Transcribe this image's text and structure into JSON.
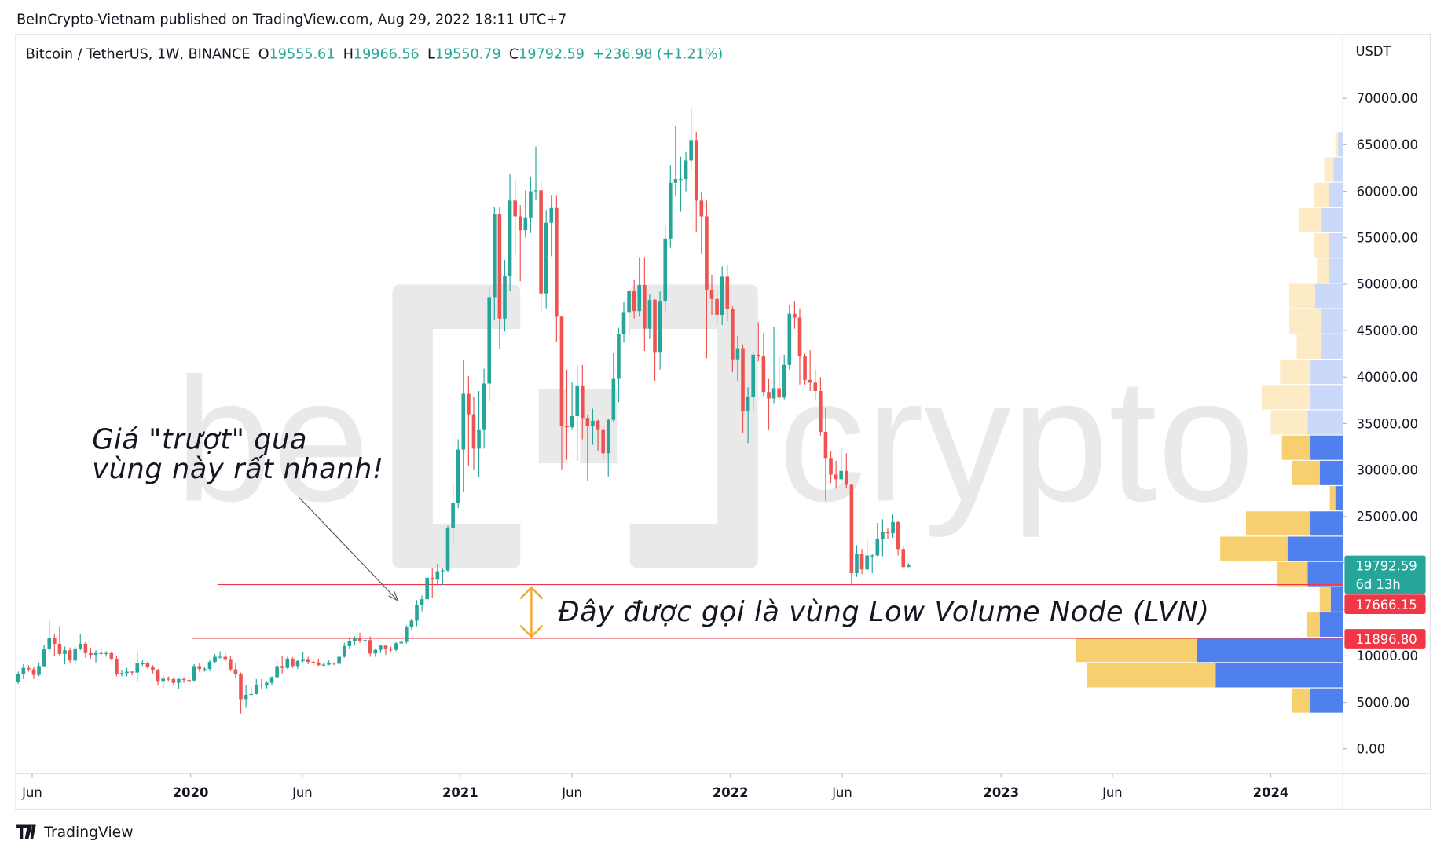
{
  "header": "BeInCrypto-Vietnam published on TradingView.com, Aug 29, 2022 18:11 UTC+7",
  "brand": "TradingView",
  "watermark": [
    "be",
    "crypto"
  ],
  "chart_data": {
    "type": "candlestick",
    "symbol": "Bitcoin / TetherUS, 1W, BINANCE",
    "ohlc_labels": [
      "O",
      "H",
      "L",
      "C"
    ],
    "change": "+236.98 (+1.21%)",
    "unit": "USDT",
    "countdown": "6d 13h",
    "up_color": "#26a69a",
    "down_color": "#ef5350",
    "open": [
      7200,
      8000,
      8700,
      8550,
      7950,
      8900,
      10700,
      11900,
      11300,
      10200,
      10600,
      9500,
      10800,
      11300,
      10300,
      10100,
      10300,
      10300,
      10300,
      9700,
      8000,
      8150,
      8300,
      8200,
      9200,
      9200,
      8800,
      8500,
      7300,
      7550,
      7500,
      7100,
      7500,
      7400,
      7350,
      8900,
      8600,
      8600,
      9350,
      9900,
      9900,
      9650,
      8550,
      8000,
      5350,
      5800,
      5900,
      6900,
      6800,
      7100,
      7700,
      8900,
      8700,
      9700,
      8900,
      9450,
      9650,
      9350,
      9300,
      9000,
      9050,
      9250,
      9150,
      9900,
      11050,
      11550,
      11900,
      11650,
      11700,
      10250,
      10650,
      11100,
      10750,
      10650,
      11350,
      11500,
      13100,
      13800,
      15500,
      16100,
      18400,
      18200,
      19100,
      19200,
      23800,
      26500,
      32200,
      38200,
      36000,
      32300,
      34300,
      39300,
      48600,
      57500,
      46300,
      50900,
      59000,
      57300,
      55800,
      57100,
      60000,
      60100,
      49000,
      56600,
      58200,
      46500,
      34700,
      34600,
      35800,
      39100,
      35600,
      34700,
      35300,
      34300,
      31800,
      35400,
      39800,
      44600,
      47000,
      49300,
      47100,
      49900,
      45200,
      48300,
      42700,
      48200,
      54900,
      60900,
      61300,
      61300,
      63300,
      65500,
      59000,
      57300,
      49400,
      48400,
      46700,
      50800,
      47300,
      41900,
      43100,
      36300,
      37900,
      42400,
      42200,
      38400,
      37700,
      38800,
      37800,
      41300,
      46800,
      46400,
      42200,
      39700,
      39400,
      38500,
      34100,
      31300,
      29500,
      29000,
      29900,
      28400,
      18900,
      21000,
      19300,
      20800,
      20800,
      22600,
      23300,
      23200,
      24400,
      21500,
      19555.61
    ],
    "high": [
      8300,
      9100,
      9000,
      8800,
      9300,
      11200,
      13800,
      12400,
      13200,
      11000,
      10900,
      11000,
      12300,
      11500,
      10900,
      10600,
      10900,
      10500,
      10400,
      10000,
      8500,
      8700,
      8400,
      10500,
      9600,
      9400,
      9000,
      8600,
      7900,
      7800,
      7700,
      7600,
      7700,
      7600,
      9100,
      9200,
      8800,
      9600,
      10200,
      10500,
      10300,
      9950,
      9200,
      8200,
      6900,
      6700,
      7500,
      7500,
      7300,
      7800,
      9500,
      10000,
      9900,
      9850,
      9600,
      10400,
      9900,
      9600,
      9700,
      9300,
      9500,
      9300,
      9950,
      11400,
      12000,
      12100,
      12500,
      11800,
      12100,
      10700,
      11200,
      11200,
      11000,
      11500,
      11700,
      13300,
      14000,
      16000,
      16500,
      18500,
      19400,
      19900,
      19400,
      24000,
      28400,
      33300,
      41900,
      40100,
      37900,
      38500,
      40900,
      49700,
      58300,
      58300,
      52600,
      61800,
      61200,
      58500,
      60100,
      61500,
      64800,
      61000,
      57900,
      59600,
      59600,
      46600,
      40800,
      39500,
      41300,
      41300,
      36000,
      36600,
      35400,
      34800,
      35500,
      42600,
      45300,
      48100,
      49400,
      50500,
      52900,
      52900,
      48900,
      48400,
      49200,
      56300,
      62800,
      67000,
      63700,
      64200,
      69000,
      66400,
      59900,
      59000,
      51000,
      49500,
      51900,
      52100,
      47600,
      44400,
      43500,
      38900,
      42700,
      45900,
      44700,
      39800,
      45400,
      42300,
      42400,
      47700,
      48200,
      47400,
      42500,
      42900,
      40800,
      40000,
      36700,
      32000,
      31000,
      32400,
      31800,
      28500,
      21900,
      21500,
      22500,
      21000,
      24300,
      24700,
      23700,
      25200,
      24500,
      21800,
      19966.56
    ],
    "low": [
      7000,
      7500,
      8300,
      7500,
      7800,
      8800,
      10300,
      10000,
      10000,
      9100,
      9200,
      9200,
      10600,
      9800,
      9700,
      9300,
      10000,
      9900,
      9600,
      7800,
      7800,
      7800,
      7900,
      7300,
      8900,
      8600,
      8100,
      6800,
      6500,
      7300,
      6800,
      6400,
      7100,
      6900,
      7300,
      8300,
      8300,
      8400,
      9200,
      9700,
      9400,
      8400,
      7600,
      3800,
      4400,
      5700,
      5850,
      6500,
      6500,
      6800,
      7600,
      8100,
      8600,
      8700,
      8600,
      9300,
      9100,
      9000,
      8900,
      8900,
      9000,
      9000,
      9100,
      9800,
      10700,
      11100,
      11400,
      11200,
      9900,
      9900,
      10300,
      10100,
      10400,
      10500,
      11200,
      11300,
      12800,
      13200,
      14800,
      15800,
      16200,
      17700,
      17600,
      19000,
      21800,
      25900,
      27700,
      30400,
      30000,
      29200,
      32300,
      37400,
      46200,
      43000,
      44900,
      49300,
      53300,
      50300,
      55000,
      55500,
      59000,
      47000,
      47400,
      53000,
      43800,
      30000,
      31100,
      34300,
      31000,
      33300,
      28800,
      32700,
      32100,
      31100,
      29300,
      35200,
      37300,
      43700,
      44400,
      46300,
      46500,
      42800,
      44100,
      39600,
      40800,
      47100,
      53900,
      59500,
      57800,
      60000,
      62300,
      55600,
      53300,
      42000,
      46700,
      45600,
      45600,
      46000,
      40500,
      39600,
      34000,
      32900,
      36300,
      41700,
      38000,
      34300,
      37200,
      37500,
      37600,
      40800,
      45200,
      39200,
      39200,
      38500,
      37600,
      33700,
      26700,
      28600,
      28000,
      28800,
      28100,
      17600,
      18500,
      18800,
      19000,
      18900,
      20700,
      20700,
      22600,
      22700,
      20800,
      19500,
      19550.79
    ],
    "close": [
      8000,
      8700,
      8550,
      7950,
      8900,
      10700,
      11900,
      11300,
      10200,
      10600,
      9500,
      10800,
      11300,
      10300,
      10100,
      10300,
      10300,
      10300,
      9700,
      8000,
      8150,
      8300,
      8200,
      9200,
      9200,
      8800,
      8500,
      7300,
      7550,
      7500,
      7100,
      7500,
      7400,
      7350,
      8900,
      8600,
      8600,
      9350,
      9900,
      9900,
      9650,
      8550,
      8000,
      5350,
      5800,
      5900,
      6900,
      6800,
      7100,
      7700,
      8900,
      8700,
      9700,
      8900,
      9450,
      9650,
      9350,
      9300,
      9000,
      9050,
      9250,
      9150,
      9900,
      11050,
      11550,
      11900,
      11650,
      11700,
      10250,
      10650,
      11100,
      10750,
      10650,
      11350,
      11500,
      13100,
      13800,
      15500,
      16100,
      18400,
      18200,
      19100,
      19200,
      23800,
      26500,
      32200,
      38200,
      36000,
      32300,
      34300,
      39300,
      48600,
      57500,
      46300,
      50900,
      59000,
      57300,
      55800,
      57100,
      60000,
      60100,
      49000,
      56600,
      58200,
      46500,
      34700,
      34600,
      35800,
      39100,
      35600,
      34700,
      35300,
      34300,
      31800,
      35400,
      39800,
      44600,
      47000,
      49300,
      47100,
      49900,
      45200,
      48300,
      42700,
      48200,
      54900,
      60900,
      61300,
      61300,
      63300,
      65500,
      59000,
      57300,
      49400,
      48400,
      46700,
      50800,
      47300,
      41900,
      43100,
      36300,
      37900,
      42400,
      42200,
      38400,
      37700,
      38800,
      37800,
      41300,
      46800,
      46400,
      42200,
      39700,
      39400,
      38500,
      34100,
      31300,
      29500,
      29000,
      29900,
      28400,
      18900,
      21000,
      19300,
      20800,
      20800,
      22600,
      23300,
      23200,
      24400,
      21500,
      19555.61,
      19792.59
    ],
    "xlim": [
      -0.5,
      255.9
    ],
    "xticks": [
      {
        "value": 2.7,
        "label": "Jun"
      },
      {
        "value": 33.3,
        "label": "2020"
      },
      {
        "value": 54.9,
        "label": "Jun"
      },
      {
        "value": 85.4,
        "label": "2021"
      },
      {
        "value": 107,
        "label": "Jun"
      },
      {
        "value": 137.6,
        "label": "2022"
      },
      {
        "value": 159.2,
        "label": "Jun"
      },
      {
        "value": 189.9,
        "label": "2023"
      },
      {
        "value": 211.4,
        "label": "Jun"
      },
      {
        "value": 242,
        "label": "2024"
      }
    ],
    "ylim": [
      -2692,
      76881
    ],
    "yticks": [
      {
        "value": 0,
        "label": "0.00"
      },
      {
        "value": 5000,
        "label": "5000.00"
      },
      {
        "value": 10000,
        "label": "10000.00"
      },
      {
        "value": 15000,
        "label": "15000.00"
      },
      {
        "value": 20000,
        "label": "20000.00"
      },
      {
        "value": 25000,
        "label": "25000.00"
      },
      {
        "value": 30000,
        "label": "30000.00"
      },
      {
        "value": 35000,
        "label": "35000.00"
      },
      {
        "value": 40000,
        "label": "40000.00"
      },
      {
        "value": 45000,
        "label": "45000.00"
      },
      {
        "value": 50000,
        "label": "50000.00"
      },
      {
        "value": 55000,
        "label": "55000.00"
      },
      {
        "value": 60000,
        "label": "60000.00"
      },
      {
        "value": 65000,
        "label": "65000.00"
      },
      {
        "value": 70000,
        "label": "70000.00"
      }
    ],
    "levels": [
      {
        "value": 17666.15,
        "label": "17666.15"
      },
      {
        "value": 11896.8,
        "label": "11896.80"
      }
    ],
    "level_color": "#f23645",
    "volume_profile": {
      "bins": [
        3890,
        6610,
        9330,
        12050,
        14770,
        17490,
        20210,
        22930,
        25650,
        28370,
        31090,
        33810,
        36530,
        39250,
        41970,
        44690,
        47410,
        50130,
        52850,
        55570,
        58290,
        61010,
        63730,
        66450
      ],
      "up_volume": [
        20,
        140,
        132,
        14,
        12,
        33,
        73,
        70,
        6,
        30,
        31,
        40,
        53,
        33,
        27,
        35,
        28,
        13,
        16,
        25,
        16,
        10,
        3
      ],
      "down_volume": [
        35,
        138,
        158,
        25,
        13,
        38,
        60,
        35,
        8,
        25,
        35,
        38,
        35,
        35,
        23,
        23,
        30,
        15,
        15,
        23,
        15,
        10,
        5
      ],
      "value_area_high": 33810,
      "colors": {
        "up": "#f7cf6e",
        "down": "#4f80ee",
        "up_faded": "#fdebc6",
        "down_faded": "#cad8fa"
      }
    },
    "annotations": [
      "Giá \"trượt\" qua",
      "vùng này rất nhanh!",
      "Đây được gọi là vùng Low Volume Node (LVN)"
    ]
  }
}
